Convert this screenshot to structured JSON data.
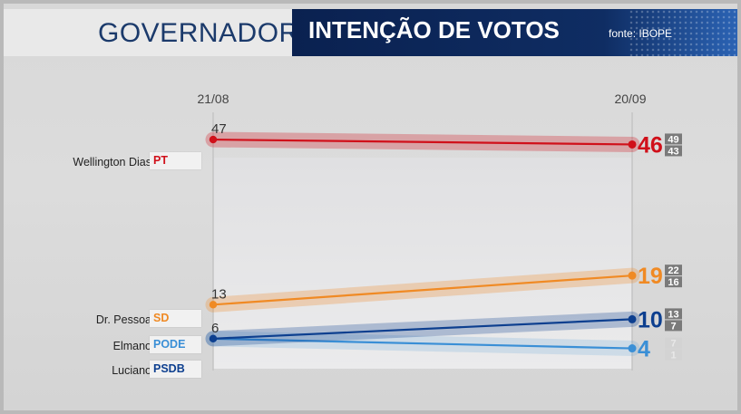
{
  "header": {
    "title": "GOVERNADOR",
    "subtitle": "INTENÇÃO DE VOTOS",
    "source": "fonte: IBOPE"
  },
  "candidates": [
    {
      "name": "Wellington Dias",
      "party": "PT"
    },
    {
      "name": "Dr. Pessoa",
      "party": "SD"
    },
    {
      "name": "Elmano",
      "party": "PODE"
    },
    {
      "name": "Luciano",
      "party": "PSDB"
    }
  ],
  "chart_data": {
    "type": "line",
    "x": [
      "21/08",
      "20/09"
    ],
    "series": [
      {
        "name": "Wellington Dias PT",
        "values": [
          47,
          46
        ],
        "range_end": [
          43,
          49
        ],
        "color": "#d0101a"
      },
      {
        "name": "Dr. Pessoa SD",
        "values": [
          13,
          19
        ],
        "range_end": [
          16,
          22
        ],
        "color": "#f08a24"
      },
      {
        "name": "Elmano PODE",
        "values": [
          6,
          10
        ],
        "range_end": [
          7,
          13
        ],
        "color": "#0d3f8f"
      },
      {
        "name": "Luciano PSDB",
        "values": [
          6,
          4
        ],
        "range_end": [
          1,
          7
        ],
        "color": "#3a8fd6"
      }
    ],
    "start_labels": [
      "47",
      "13",
      "6"
    ],
    "ylim": [
      0,
      50
    ],
    "grid": false
  }
}
